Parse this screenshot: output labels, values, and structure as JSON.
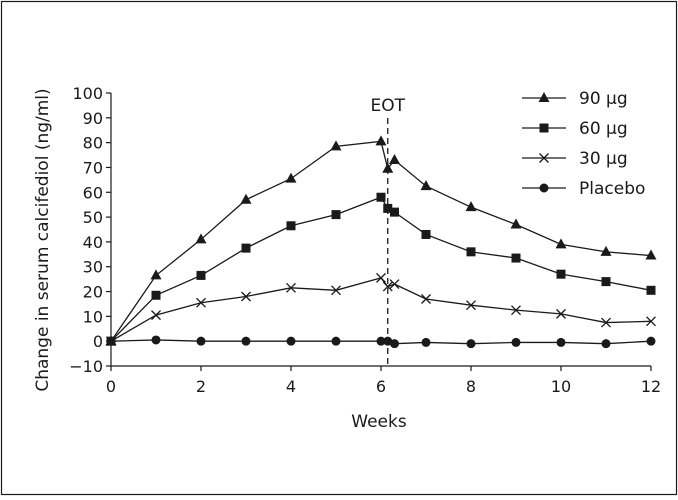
{
  "chart_data": {
    "type": "line",
    "title": "",
    "xlabel": "Weeks",
    "ylabel": "Change in serum calcifediol (ng/ml)",
    "xlim": [
      0,
      12
    ],
    "ylim": [
      -10,
      100
    ],
    "xticks": [
      0,
      2,
      4,
      6,
      8,
      10,
      12
    ],
    "yticks": [
      -10,
      0,
      10,
      20,
      30,
      40,
      50,
      60,
      70,
      80,
      90,
      100
    ],
    "grid": false,
    "legend_position": "top-right",
    "annotation": {
      "label": "EOT",
      "x": 6.15
    },
    "series": [
      {
        "name": "90 µg",
        "marker": "triangle",
        "x": [
          0,
          1,
          2,
          3,
          4,
          5,
          6,
          6.15,
          6.3,
          7,
          8,
          9,
          10,
          11,
          12
        ],
        "y": [
          0,
          26.5,
          41,
          57,
          65.5,
          78.5,
          80.5,
          69.5,
          73,
          62.5,
          54,
          47,
          39,
          36,
          34.5
        ]
      },
      {
        "name": "60 µg",
        "marker": "square",
        "x": [
          0,
          1,
          2,
          3,
          4,
          5,
          6,
          6.15,
          6.3,
          7,
          8,
          9,
          10,
          11,
          12
        ],
        "y": [
          0,
          18.5,
          26.5,
          37.5,
          46.5,
          51,
          58,
          53.5,
          52,
          43,
          36,
          33.5,
          27,
          24,
          20.5
        ]
      },
      {
        "name": "30 µg",
        "marker": "x",
        "x": [
          0,
          1,
          2,
          3,
          4,
          5,
          6,
          6.15,
          6.3,
          7,
          8,
          9,
          10,
          11,
          12
        ],
        "y": [
          0,
          10.5,
          15.5,
          18,
          21.5,
          20.5,
          25.5,
          22,
          23,
          17,
          14.5,
          12.5,
          11,
          7.5,
          8
        ]
      },
      {
        "name": "Placebo",
        "marker": "circle",
        "x": [
          0,
          1,
          2,
          3,
          4,
          5,
          6,
          6.15,
          6.3,
          7,
          8,
          9,
          10,
          11,
          12
        ],
        "y": [
          0,
          0.5,
          0,
          0,
          0,
          0,
          0,
          0,
          -1,
          -0.5,
          -1,
          -0.5,
          -0.5,
          -1,
          0
        ]
      }
    ]
  }
}
